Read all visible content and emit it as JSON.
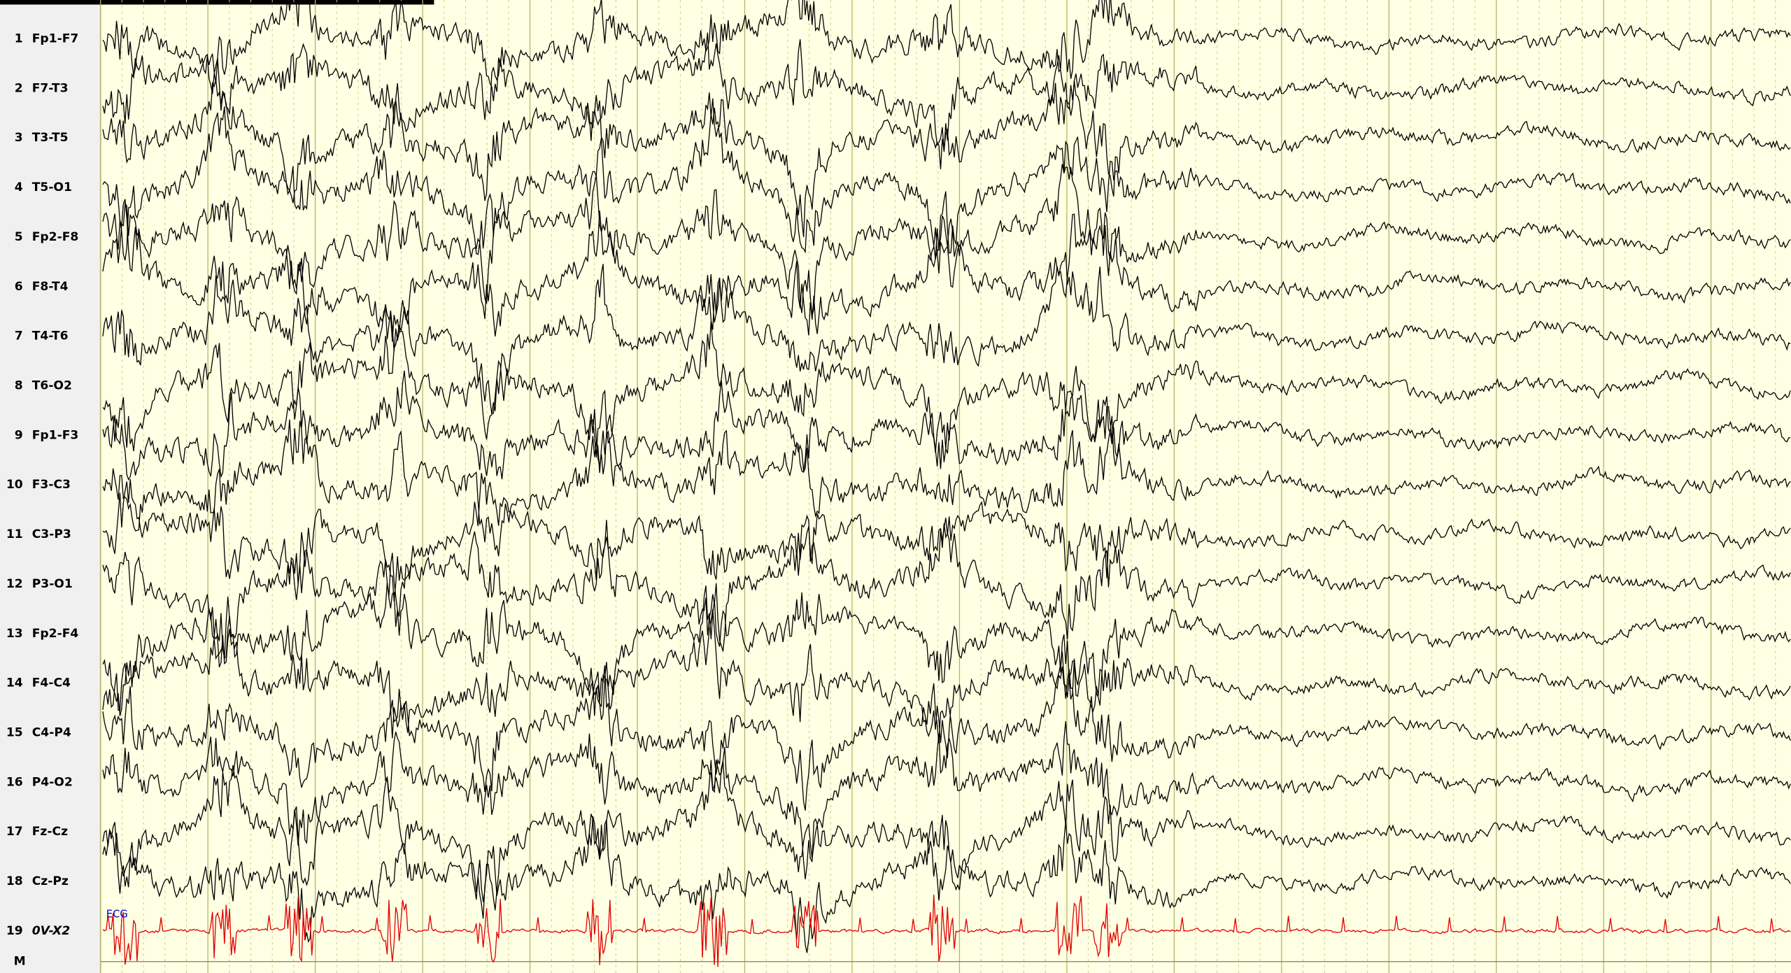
{
  "channels": [
    {
      "number": "1",
      "name": "Fp1-F7"
    },
    {
      "number": "2",
      "name": "F7-T3"
    },
    {
      "number": "3",
      "name": "T3-T5"
    },
    {
      "number": "4",
      "name": "T5-O1"
    },
    {
      "number": "5",
      "name": "Fp2-F8"
    },
    {
      "number": "6",
      "name": "F8-T4"
    },
    {
      "number": "7",
      "name": "T4-T6"
    },
    {
      "number": "8",
      "name": "T6-O2"
    },
    {
      "number": "9",
      "name": "Fp1-F3"
    },
    {
      "number": "10",
      "name": "F3-C3"
    },
    {
      "number": "11",
      "name": "C3-P3"
    },
    {
      "number": "12",
      "name": "P3-O1"
    },
    {
      "number": "13",
      "name": "Fp2-F4"
    },
    {
      "number": "14",
      "name": "F4-C4"
    },
    {
      "number": "15",
      "name": "C4-P4"
    },
    {
      "number": "16",
      "name": "P4-O2"
    },
    {
      "number": "17",
      "name": "Fz-Cz"
    },
    {
      "number": "18",
      "name": "Cz-Pz"
    },
    {
      "number": "19",
      "name": "0V-X2"
    }
  ],
  "marker_row": "M",
  "annotation": "ECG"
}
